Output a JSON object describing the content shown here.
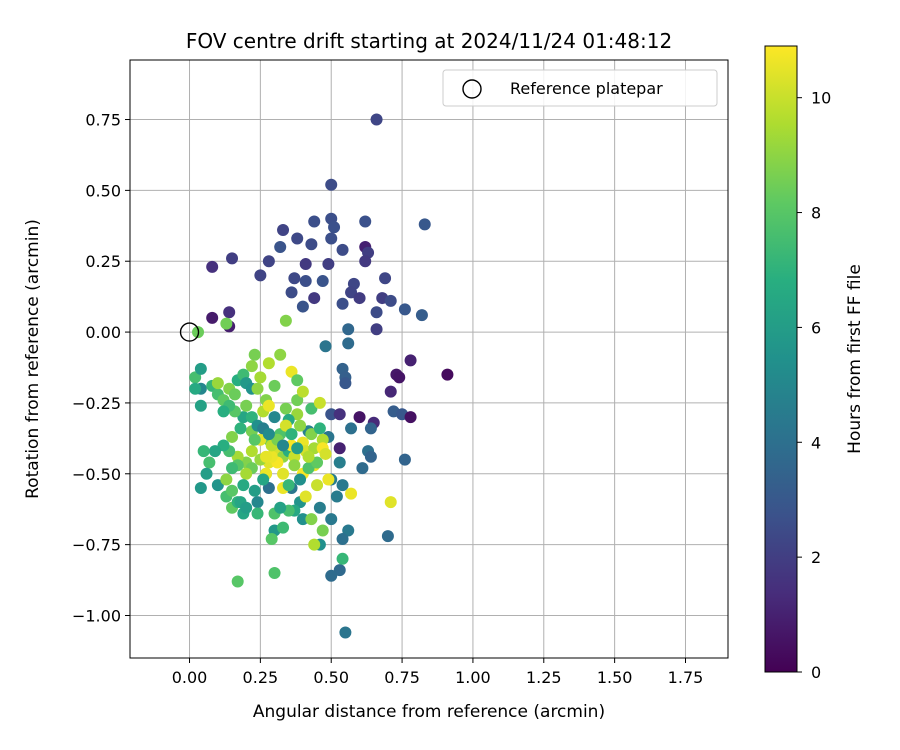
{
  "chart_data": {
    "type": "scatter",
    "title": "FOV centre drift starting at 2024/11/24 01:48:12",
    "xlabel": "Angular distance from reference (arcmin)",
    "ylabel": "Rotation from reference (arcmin)",
    "xlim": [
      -0.21,
      1.9
    ],
    "ylim": [
      -1.15,
      0.96
    ],
    "xticks": [
      0.0,
      0.25,
      0.5,
      0.75,
      1.0,
      1.25,
      1.5,
      1.75
    ],
    "xtick_labels": [
      "0.00",
      "0.25",
      "0.50",
      "0.75",
      "1.00",
      "1.25",
      "1.50",
      "1.75"
    ],
    "yticks": [
      -1.0,
      -0.75,
      -0.5,
      -0.25,
      0.0,
      0.25,
      0.5,
      0.75
    ],
    "ytick_labels": [
      "−1.00",
      "−0.75",
      "−0.50",
      "−0.25",
      "0.00",
      "0.25",
      "0.50",
      "0.75"
    ],
    "grid": true,
    "legend": {
      "placement": "top-right",
      "entries": [
        "Reference platepar"
      ]
    },
    "reference_point": {
      "x": 0.0,
      "y": 0.0
    },
    "colorbar": {
      "label": "Hours from first FF file",
      "colormap": "viridis",
      "range": [
        0,
        10.9
      ],
      "ticks": [
        0,
        2,
        4,
        6,
        8,
        10
      ],
      "tick_labels": [
        "0",
        "2",
        "4",
        "6",
        "8",
        "10"
      ]
    },
    "points": [
      [
        0.66,
        0.75,
        2.3
      ],
      [
        0.5,
        0.52,
        2.5
      ],
      [
        0.83,
        0.38,
        3.0
      ],
      [
        0.33,
        0.36,
        2.2
      ],
      [
        0.44,
        0.39,
        2.6
      ],
      [
        0.5,
        0.4,
        2.6
      ],
      [
        0.62,
        0.39,
        2.7
      ],
      [
        0.51,
        0.37,
        2.7
      ],
      [
        0.38,
        0.33,
        2.4
      ],
      [
        0.5,
        0.33,
        2.6
      ],
      [
        0.32,
        0.3,
        2.8
      ],
      [
        0.43,
        0.31,
        2.5
      ],
      [
        0.62,
        0.3,
        1.0
      ],
      [
        0.54,
        0.29,
        2.5
      ],
      [
        0.63,
        0.28,
        2.0
      ],
      [
        0.15,
        0.26,
        2.0
      ],
      [
        0.28,
        0.25,
        2.2
      ],
      [
        0.41,
        0.24,
        1.8
      ],
      [
        0.49,
        0.24,
        2.0
      ],
      [
        0.62,
        0.25,
        1.8
      ],
      [
        0.08,
        0.23,
        1.5
      ],
      [
        0.25,
        0.2,
        2.2
      ],
      [
        0.37,
        0.19,
        2.4
      ],
      [
        0.41,
        0.18,
        2.6
      ],
      [
        0.47,
        0.18,
        2.8
      ],
      [
        0.58,
        0.17,
        2.3
      ],
      [
        0.69,
        0.19,
        2.3
      ],
      [
        0.36,
        0.14,
        2.5
      ],
      [
        0.44,
        0.12,
        1.8
      ],
      [
        0.57,
        0.14,
        2.2
      ],
      [
        0.6,
        0.12,
        1.9
      ],
      [
        0.68,
        0.12,
        2.0
      ],
      [
        0.54,
        0.1,
        2.6
      ],
      [
        0.71,
        0.11,
        2.5
      ],
      [
        0.4,
        0.09,
        2.8
      ],
      [
        0.66,
        0.07,
        2.5
      ],
      [
        0.76,
        0.08,
        3.0
      ],
      [
        0.82,
        0.06,
        3.2
      ],
      [
        0.14,
        0.07,
        1.5
      ],
      [
        0.08,
        0.05,
        0.8
      ],
      [
        0.14,
        0.02,
        0.9
      ],
      [
        0.13,
        0.03,
        8.5
      ],
      [
        0.34,
        0.04,
        8.8
      ],
      [
        0.56,
        0.01,
        3.6
      ],
      [
        0.66,
        0.01,
        2.0
      ],
      [
        0.03,
        0.0,
        8.4
      ],
      [
        0.56,
        -0.04,
        3.8
      ],
      [
        0.48,
        -0.05,
        4.2
      ],
      [
        0.78,
        -0.1,
        1.0
      ],
      [
        0.54,
        -0.13,
        3.4
      ],
      [
        0.73,
        -0.15,
        0.7
      ],
      [
        0.91,
        -0.15,
        0.3
      ],
      [
        0.74,
        -0.16,
        0.6
      ],
      [
        0.55,
        -0.16,
        3.3
      ],
      [
        0.55,
        -0.18,
        3.0
      ],
      [
        0.71,
        -0.21,
        1.2
      ],
      [
        0.04,
        -0.2,
        5.0
      ],
      [
        0.5,
        -0.29,
        2.8
      ],
      [
        0.53,
        -0.29,
        1.5
      ],
      [
        0.6,
        -0.3,
        0.6
      ],
      [
        0.72,
        -0.28,
        3.2
      ],
      [
        0.75,
        -0.29,
        3.0
      ],
      [
        0.78,
        -0.3,
        0.5
      ],
      [
        0.65,
        -0.32,
        1.3
      ],
      [
        0.57,
        -0.34,
        4.0
      ],
      [
        0.64,
        -0.34,
        3.5
      ],
      [
        0.42,
        -0.35,
        4.8
      ],
      [
        0.49,
        -0.37,
        4.2
      ],
      [
        0.53,
        -0.41,
        1.0
      ],
      [
        0.63,
        -0.42,
        4.0
      ],
      [
        0.64,
        -0.44,
        3.5
      ],
      [
        0.53,
        -0.46,
        4.6
      ],
      [
        0.76,
        -0.45,
        3.5
      ],
      [
        0.61,
        -0.48,
        3.8
      ],
      [
        0.5,
        -0.52,
        4.6
      ],
      [
        0.54,
        -0.54,
        4.4
      ],
      [
        0.28,
        -0.55,
        4.0
      ],
      [
        0.36,
        -0.55,
        4.3
      ],
      [
        0.52,
        -0.58,
        4.5
      ],
      [
        0.24,
        -0.6,
        5.0
      ],
      [
        0.39,
        -0.6,
        5.6
      ],
      [
        0.46,
        -0.62,
        4.6
      ],
      [
        0.5,
        -0.66,
        4.4
      ],
      [
        0.56,
        -0.7,
        4.4
      ],
      [
        0.54,
        -0.73,
        4.0
      ],
      [
        0.7,
        -0.72,
        3.8
      ],
      [
        0.53,
        -0.84,
        3.7
      ],
      [
        0.5,
        -0.86,
        3.8
      ],
      [
        0.55,
        -1.06,
        4.2
      ],
      [
        0.37,
        -0.63,
        6.5
      ],
      [
        0.3,
        -0.7,
        5.8
      ],
      [
        0.4,
        -0.66,
        5.4
      ],
      [
        0.46,
        -0.75,
        5.4
      ],
      [
        0.02,
        -0.16,
        7.6
      ],
      [
        0.04,
        -0.13,
        6.0
      ],
      [
        0.02,
        -0.2,
        6.6
      ],
      [
        0.04,
        -0.26,
        6.2
      ],
      [
        0.08,
        -0.19,
        7.2
      ],
      [
        0.1,
        -0.22,
        7.6
      ],
      [
        0.12,
        -0.24,
        8.2
      ],
      [
        0.1,
        -0.18,
        9.2
      ],
      [
        0.14,
        -0.2,
        8.8
      ],
      [
        0.16,
        -0.22,
        8.4
      ],
      [
        0.17,
        -0.17,
        6.8
      ],
      [
        0.19,
        -0.15,
        7.4
      ],
      [
        0.2,
        -0.18,
        5.8
      ],
      [
        0.22,
        -0.2,
        5.5
      ],
      [
        0.23,
        -0.08,
        8.6
      ],
      [
        0.22,
        -0.12,
        9.0
      ],
      [
        0.25,
        -0.16,
        9.4
      ],
      [
        0.24,
        -0.2,
        9.0
      ],
      [
        0.27,
        -0.24,
        8.8
      ],
      [
        0.28,
        -0.11,
        9.6
      ],
      [
        0.32,
        -0.08,
        9.0
      ],
      [
        0.3,
        -0.19,
        8.4
      ],
      [
        0.34,
        -0.27,
        8.6
      ],
      [
        0.36,
        -0.14,
        10.6
      ],
      [
        0.38,
        -0.17,
        8.2
      ],
      [
        0.38,
        -0.24,
        8.5
      ],
      [
        0.4,
        -0.21,
        9.8
      ],
      [
        0.43,
        -0.27,
        7.6
      ],
      [
        0.46,
        -0.25,
        10.0
      ],
      [
        0.38,
        -0.29,
        9.2
      ],
      [
        0.35,
        -0.31,
        6.6
      ],
      [
        0.39,
        -0.33,
        9.0
      ],
      [
        0.32,
        -0.36,
        7.8
      ],
      [
        0.28,
        -0.38,
        8.2
      ],
      [
        0.25,
        -0.38,
        10.4
      ],
      [
        0.22,
        -0.35,
        8.6
      ],
      [
        0.19,
        -0.3,
        6.4
      ],
      [
        0.16,
        -0.28,
        8.0
      ],
      [
        0.14,
        -0.26,
        7.4
      ],
      [
        0.12,
        -0.28,
        6.8
      ],
      [
        0.18,
        -0.34,
        7.0
      ],
      [
        0.22,
        -0.42,
        9.6
      ],
      [
        0.2,
        -0.46,
        8.8
      ],
      [
        0.17,
        -0.44,
        9.4
      ],
      [
        0.15,
        -0.37,
        8.8
      ],
      [
        0.14,
        -0.42,
        7.6
      ],
      [
        0.12,
        -0.4,
        6.8
      ],
      [
        0.09,
        -0.42,
        6.4
      ],
      [
        0.05,
        -0.42,
        7.2
      ],
      [
        0.07,
        -0.46,
        7.6
      ],
      [
        0.06,
        -0.5,
        6.0
      ],
      [
        0.04,
        -0.55,
        5.8
      ],
      [
        0.1,
        -0.54,
        5.6
      ],
      [
        0.13,
        -0.58,
        7.6
      ],
      [
        0.15,
        -0.62,
        8.2
      ],
      [
        0.17,
        -0.6,
        7.0
      ],
      [
        0.19,
        -0.64,
        6.4
      ],
      [
        0.23,
        -0.56,
        6.0
      ],
      [
        0.24,
        -0.64,
        7.2
      ],
      [
        0.27,
        -0.5,
        8.4
      ],
      [
        0.28,
        -0.46,
        10.4
      ],
      [
        0.3,
        -0.42,
        10.2
      ],
      [
        0.33,
        -0.44,
        9.0
      ],
      [
        0.35,
        -0.42,
        6.8
      ],
      [
        0.36,
        -0.4,
        10.8
      ],
      [
        0.37,
        -0.44,
        10.0
      ],
      [
        0.4,
        -0.39,
        10.6
      ],
      [
        0.41,
        -0.42,
        10.2
      ],
      [
        0.43,
        -0.36,
        8.8
      ],
      [
        0.44,
        -0.41,
        9.4
      ],
      [
        0.46,
        -0.34,
        7.0
      ],
      [
        0.47,
        -0.38,
        9.6
      ],
      [
        0.47,
        -0.41,
        10.8
      ],
      [
        0.44,
        -0.47,
        10.6
      ],
      [
        0.4,
        -0.5,
        10.8
      ],
      [
        0.37,
        -0.47,
        9.0
      ],
      [
        0.33,
        -0.5,
        10.4
      ],
      [
        0.31,
        -0.46,
        10.8
      ],
      [
        0.29,
        -0.44,
        10.6
      ],
      [
        0.25,
        -0.45,
        9.2
      ],
      [
        0.22,
        -0.48,
        8.4
      ],
      [
        0.2,
        -0.5,
        9.4
      ],
      [
        0.17,
        -0.47,
        8.0
      ],
      [
        0.15,
        -0.48,
        7.4
      ],
      [
        0.19,
        -0.54,
        6.6
      ],
      [
        0.15,
        -0.56,
        8.0
      ],
      [
        0.13,
        -0.52,
        9.0
      ],
      [
        0.18,
        -0.6,
        6.4
      ],
      [
        0.2,
        -0.62,
        6.0
      ],
      [
        0.3,
        -0.64,
        7.8
      ],
      [
        0.33,
        -0.55,
        10.6
      ],
      [
        0.35,
        -0.54,
        7.2
      ],
      [
        0.39,
        -0.52,
        5.4
      ],
      [
        0.42,
        -0.48,
        7.8
      ],
      [
        0.45,
        -0.54,
        10.0
      ],
      [
        0.49,
        -0.52,
        10.6
      ],
      [
        0.57,
        -0.57,
        10.6
      ],
      [
        0.71,
        -0.6,
        10.4
      ],
      [
        0.41,
        -0.58,
        10.4
      ],
      [
        0.43,
        -0.66,
        8.8
      ],
      [
        0.35,
        -0.63,
        7.6
      ],
      [
        0.29,
        -0.73,
        8.0
      ],
      [
        0.33,
        -0.69,
        7.4
      ],
      [
        0.47,
        -0.7,
        8.6
      ],
      [
        0.54,
        -0.8,
        7.2
      ],
      [
        0.44,
        -0.75,
        9.6
      ],
      [
        0.32,
        -0.62,
        6.2
      ],
      [
        0.3,
        -0.85,
        7.8
      ],
      [
        0.17,
        -0.88,
        8.0
      ],
      [
        0.27,
        -0.5,
        10.6
      ],
      [
        0.26,
        -0.52,
        6.4
      ],
      [
        0.23,
        -0.38,
        8.0
      ],
      [
        0.27,
        -0.44,
        10.5
      ],
      [
        0.29,
        -0.4,
        9.8
      ],
      [
        0.31,
        -0.38,
        8.6
      ],
      [
        0.34,
        -0.33,
        10.2
      ],
      [
        0.36,
        -0.36,
        7.0
      ],
      [
        0.38,
        -0.41,
        6.0
      ],
      [
        0.45,
        -0.46,
        8.2
      ],
      [
        0.48,
        -0.43,
        10.2
      ],
      [
        0.42,
        -0.44,
        9.6
      ],
      [
        0.26,
        -0.28,
        9.6
      ],
      [
        0.28,
        -0.26,
        10.6
      ],
      [
        0.2,
        -0.26,
        8.6
      ],
      [
        0.22,
        -0.3,
        7.0
      ],
      [
        0.24,
        -0.33,
        5.4
      ],
      [
        0.3,
        -0.3,
        5.0
      ],
      [
        0.26,
        -0.34,
        4.6
      ],
      [
        0.28,
        -0.36,
        5.2
      ],
      [
        0.33,
        -0.4,
        5.0
      ]
    ]
  }
}
